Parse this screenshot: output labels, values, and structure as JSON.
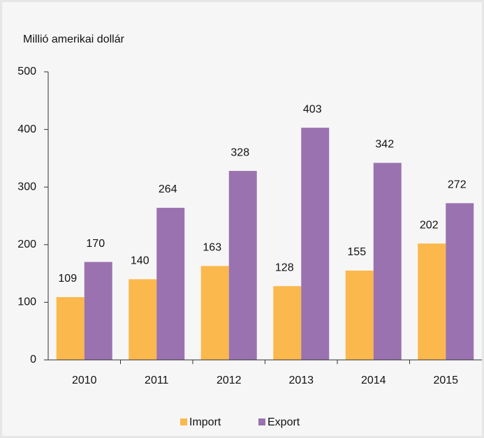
{
  "chart_data": {
    "type": "bar",
    "y_axis_label": "Millió amerikai dollár",
    "categories": [
      "2010",
      "2011",
      "2012",
      "2013",
      "2014",
      "2015"
    ],
    "series": [
      {
        "name": "Import",
        "color": "#fbb84c",
        "values": [
          109,
          140,
          163,
          128,
          155,
          202
        ]
      },
      {
        "name": "Export",
        "color": "#9b72b0",
        "values": [
          170,
          264,
          328,
          403,
          342,
          272
        ]
      }
    ],
    "ylim": [
      0,
      500
    ],
    "yticks": [
      0,
      100,
      200,
      300,
      400,
      500
    ],
    "grid": false,
    "legend": "bottom"
  }
}
